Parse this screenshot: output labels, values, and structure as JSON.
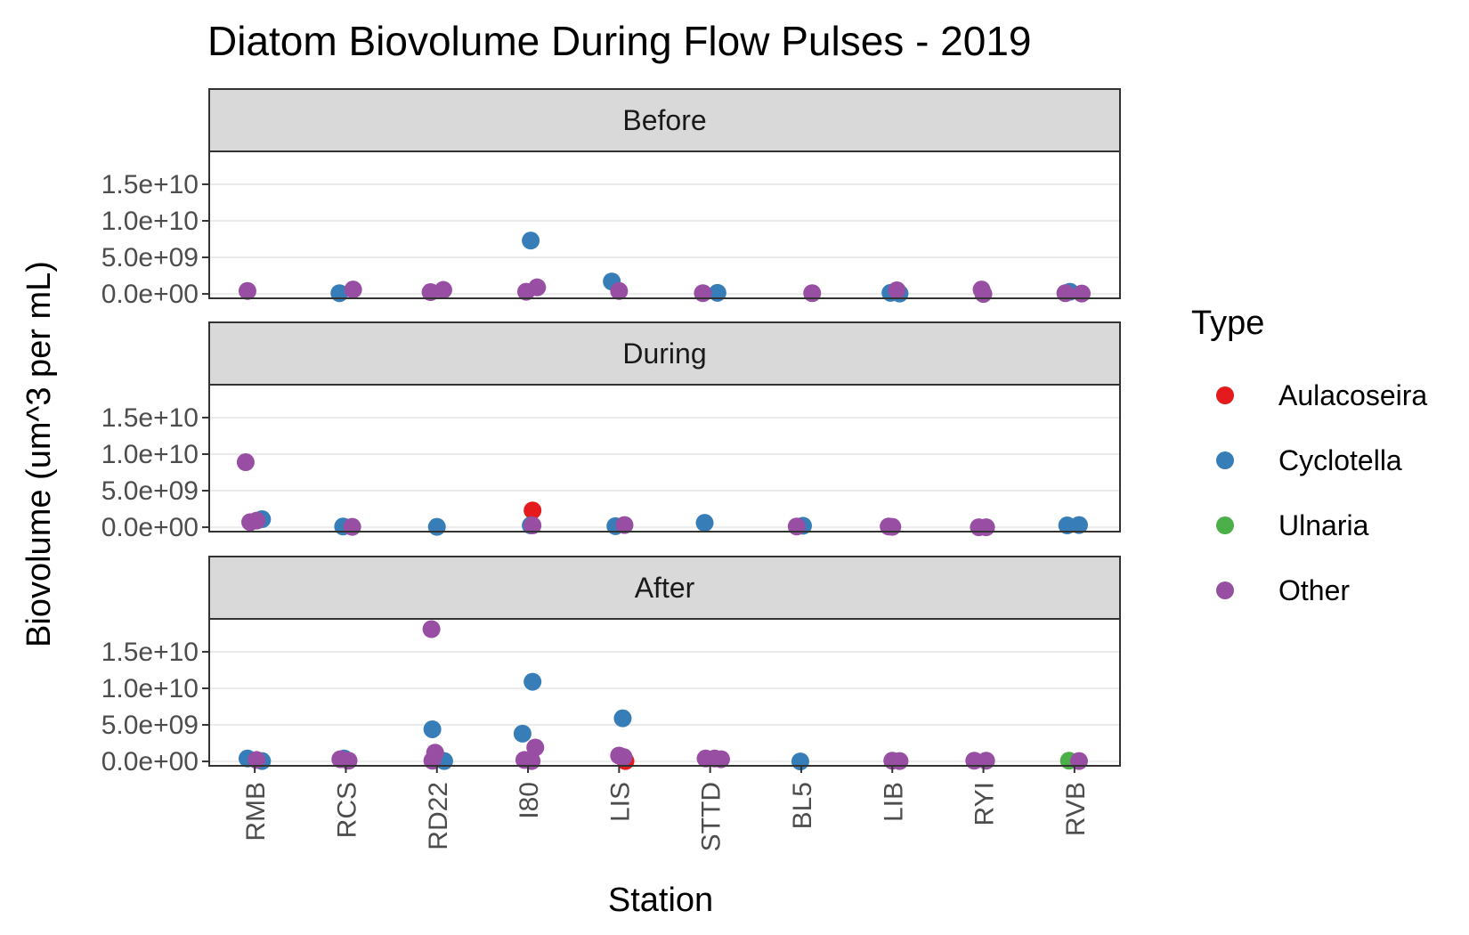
{
  "chart_data": {
    "type": "scatter",
    "title": "Diatom Biovolume During Flow Pulses - 2019",
    "xlabel": "Station",
    "ylabel": "Biovolume (um^3 per mL)",
    "categories": [
      "RMB",
      "RCS",
      "RD22",
      "I80",
      "LIS",
      "STTD",
      "BL5",
      "LIB",
      "RYI",
      "RVB"
    ],
    "y_ticks": [
      0,
      5000000000,
      10000000000,
      15000000000
    ],
    "y_tick_labels": [
      "0.0e+00",
      "5.0e+09",
      "1.0e+10",
      "1.5e+10"
    ],
    "ylim": [
      -600000000,
      19500000000
    ],
    "facets": [
      "Before",
      "During",
      "After"
    ],
    "legend": {
      "title": "Type",
      "entries": [
        {
          "name": "Aulacoseira",
          "color": "#e41a1c"
        },
        {
          "name": "Cyclotella",
          "color": "#377eb8"
        },
        {
          "name": "Ulnaria",
          "color": "#4daf4a"
        },
        {
          "name": "Other",
          "color": "#984ea3"
        }
      ]
    },
    "series": [
      {
        "name": "Aulacoseira",
        "color": "#e41a1c",
        "points": [
          {
            "facet": "During",
            "station": "I80",
            "jitter": 0.05,
            "y": 2300000000
          },
          {
            "facet": "After",
            "station": "LIS",
            "jitter": 0.07,
            "y": 50000000
          }
        ]
      },
      {
        "name": "Cyclotella",
        "color": "#377eb8",
        "points": [
          {
            "facet": "Before",
            "station": "RCS",
            "jitter": -0.07,
            "y": 100000000
          },
          {
            "facet": "Before",
            "station": "I80",
            "jitter": 0.03,
            "y": 7300000000
          },
          {
            "facet": "Before",
            "station": "LIS",
            "jitter": -0.08,
            "y": 1700000000
          },
          {
            "facet": "Before",
            "station": "STTD",
            "jitter": 0.08,
            "y": 150000000
          },
          {
            "facet": "Before",
            "station": "LIB",
            "jitter": -0.02,
            "y": 150000000
          },
          {
            "facet": "Before",
            "station": "LIB",
            "jitter": 0.08,
            "y": 50000000
          },
          {
            "facet": "Before",
            "station": "RVB",
            "jitter": -0.05,
            "y": 300000000
          },
          {
            "facet": "During",
            "station": "RMB",
            "jitter": 0.08,
            "y": 1100000000
          },
          {
            "facet": "During",
            "station": "RCS",
            "jitter": -0.03,
            "y": 100000000
          },
          {
            "facet": "During",
            "station": "RD22",
            "jitter": 0.0,
            "y": 50000000
          },
          {
            "facet": "During",
            "station": "I80",
            "jitter": 0.03,
            "y": 250000000
          },
          {
            "facet": "During",
            "station": "LIS",
            "jitter": -0.04,
            "y": 150000000
          },
          {
            "facet": "During",
            "station": "STTD",
            "jitter": -0.06,
            "y": 600000000
          },
          {
            "facet": "During",
            "station": "BL5",
            "jitter": 0.02,
            "y": 200000000
          },
          {
            "facet": "During",
            "station": "RVB",
            "jitter": -0.08,
            "y": 250000000
          },
          {
            "facet": "During",
            "station": "RVB",
            "jitter": 0.05,
            "y": 300000000
          },
          {
            "facet": "After",
            "station": "RMB",
            "jitter": -0.08,
            "y": 400000000
          },
          {
            "facet": "After",
            "station": "RMB",
            "jitter": 0.08,
            "y": 50000000
          },
          {
            "facet": "After",
            "station": "RCS",
            "jitter": -0.02,
            "y": 400000000
          },
          {
            "facet": "After",
            "station": "RD22",
            "jitter": -0.05,
            "y": 4400000000
          },
          {
            "facet": "After",
            "station": "RD22",
            "jitter": 0.08,
            "y": 50000000
          },
          {
            "facet": "After",
            "station": "I80",
            "jitter": -0.06,
            "y": 3800000000
          },
          {
            "facet": "After",
            "station": "I80",
            "jitter": 0.05,
            "y": 10900000000
          },
          {
            "facet": "After",
            "station": "LIS",
            "jitter": 0.04,
            "y": 5900000000
          },
          {
            "facet": "After",
            "station": "BL5",
            "jitter": -0.01,
            "y": 0
          }
        ]
      },
      {
        "name": "Ulnaria",
        "color": "#4daf4a",
        "points": [
          {
            "facet": "After",
            "station": "RVB",
            "jitter": -0.06,
            "y": 100000000
          }
        ]
      },
      {
        "name": "Other",
        "color": "#984ea3",
        "points": [
          {
            "facet": "Before",
            "station": "RMB",
            "jitter": -0.08,
            "y": 400000000
          },
          {
            "facet": "Before",
            "station": "RCS",
            "jitter": 0.08,
            "y": 600000000
          },
          {
            "facet": "Before",
            "station": "RD22",
            "jitter": -0.07,
            "y": 250000000
          },
          {
            "facet": "Before",
            "station": "RD22",
            "jitter": 0.07,
            "y": 550000000
          },
          {
            "facet": "Before",
            "station": "I80",
            "jitter": -0.02,
            "y": 300000000
          },
          {
            "facet": "Before",
            "station": "I80",
            "jitter": 0.1,
            "y": 900000000
          },
          {
            "facet": "Before",
            "station": "LIS",
            "jitter": 0.0,
            "y": 400000000
          },
          {
            "facet": "Before",
            "station": "STTD",
            "jitter": -0.08,
            "y": 100000000
          },
          {
            "facet": "Before",
            "station": "BL5",
            "jitter": 0.12,
            "y": 100000000
          },
          {
            "facet": "Before",
            "station": "LIB",
            "jitter": 0.05,
            "y": 500000000
          },
          {
            "facet": "Before",
            "station": "RYI",
            "jitter": -0.02,
            "y": 600000000
          },
          {
            "facet": "Before",
            "station": "RYI",
            "jitter": 0.0,
            "y": 0
          },
          {
            "facet": "Before",
            "station": "RVB",
            "jitter": -0.1,
            "y": 100000000
          },
          {
            "facet": "Before",
            "station": "RVB",
            "jitter": 0.08,
            "y": 50000000
          },
          {
            "facet": "During",
            "station": "RMB",
            "jitter": -0.1,
            "y": 8900000000
          },
          {
            "facet": "During",
            "station": "RMB",
            "jitter": -0.05,
            "y": 700000000
          },
          {
            "facet": "During",
            "station": "RMB",
            "jitter": 0.02,
            "y": 900000000
          },
          {
            "facet": "During",
            "station": "RCS",
            "jitter": 0.07,
            "y": 50000000
          },
          {
            "facet": "During",
            "station": "I80",
            "jitter": 0.05,
            "y": 250000000
          },
          {
            "facet": "During",
            "station": "LIS",
            "jitter": 0.06,
            "y": 300000000
          },
          {
            "facet": "During",
            "station": "BL5",
            "jitter": -0.05,
            "y": 100000000
          },
          {
            "facet": "During",
            "station": "LIB",
            "jitter": -0.04,
            "y": 100000000
          },
          {
            "facet": "During",
            "station": "LIB",
            "jitter": 0.0,
            "y": 50000000
          },
          {
            "facet": "During",
            "station": "RYI",
            "jitter": -0.05,
            "y": 0
          },
          {
            "facet": "During",
            "station": "RYI",
            "jitter": 0.03,
            "y": 0
          },
          {
            "facet": "After",
            "station": "RMB",
            "jitter": 0.02,
            "y": 200000000
          },
          {
            "facet": "After",
            "station": "RCS",
            "jitter": -0.06,
            "y": 300000000
          },
          {
            "facet": "After",
            "station": "RCS",
            "jitter": 0.03,
            "y": 100000000
          },
          {
            "facet": "After",
            "station": "RD22",
            "jitter": -0.06,
            "y": 18100000000
          },
          {
            "facet": "After",
            "station": "RD22",
            "jitter": -0.02,
            "y": 1200000000
          },
          {
            "facet": "After",
            "station": "RD22",
            "jitter": -0.05,
            "y": 100000000
          },
          {
            "facet": "After",
            "station": "I80",
            "jitter": -0.04,
            "y": 200000000
          },
          {
            "facet": "After",
            "station": "I80",
            "jitter": 0.08,
            "y": 1900000000
          },
          {
            "facet": "After",
            "station": "I80",
            "jitter": 0.04,
            "y": 50000000
          },
          {
            "facet": "After",
            "station": "LIS",
            "jitter": 0.0,
            "y": 800000000
          },
          {
            "facet": "After",
            "station": "LIS",
            "jitter": 0.05,
            "y": 600000000
          },
          {
            "facet": "After",
            "station": "STTD",
            "jitter": -0.05,
            "y": 400000000
          },
          {
            "facet": "After",
            "station": "STTD",
            "jitter": 0.05,
            "y": 400000000
          },
          {
            "facet": "After",
            "station": "STTD",
            "jitter": 0.12,
            "y": 300000000
          },
          {
            "facet": "After",
            "station": "LIB",
            "jitter": 0.0,
            "y": 100000000
          },
          {
            "facet": "After",
            "station": "LIB",
            "jitter": 0.08,
            "y": 50000000
          },
          {
            "facet": "After",
            "station": "RYI",
            "jitter": -0.1,
            "y": 100000000
          },
          {
            "facet": "After",
            "station": "RYI",
            "jitter": 0.03,
            "y": 100000000
          },
          {
            "facet": "After",
            "station": "RVB",
            "jitter": 0.05,
            "y": 50000000
          }
        ]
      }
    ]
  }
}
